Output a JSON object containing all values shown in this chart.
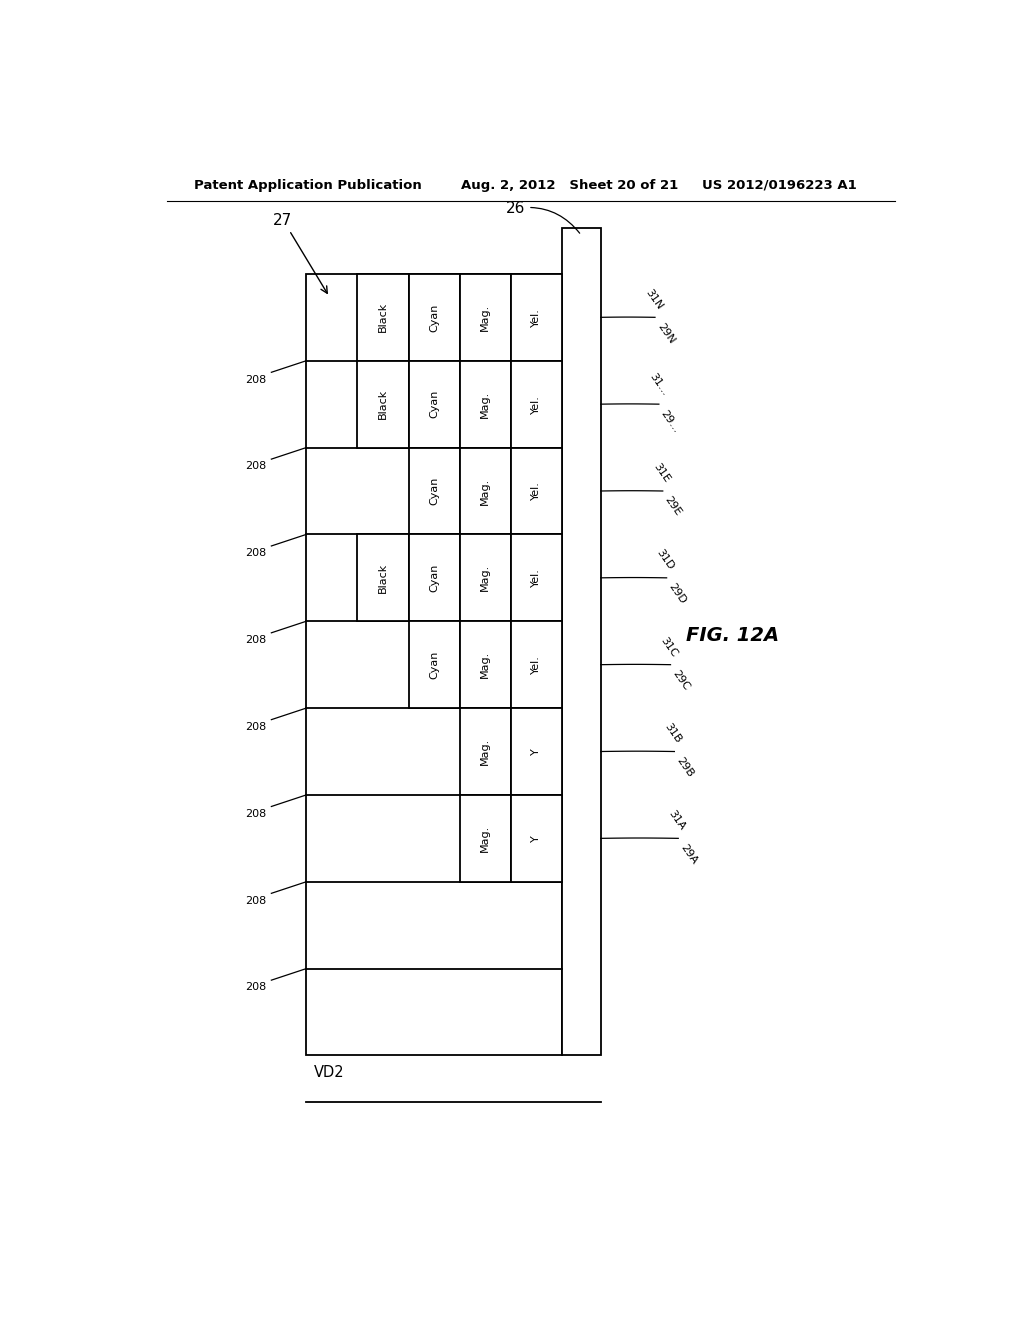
{
  "title_left": "Patent Application Publication",
  "title_center": "Aug. 2, 2012   Sheet 20 of 21",
  "title_right": "US 2012/0196223 A1",
  "fig_label": "FIG. 12A",
  "bg_color": "#ffffff",
  "rows_from_top": [
    {
      "cells": [
        {
          "label": "Black",
          "col": 1
        },
        {
          "label": "Cyan",
          "col": 2
        },
        {
          "label": "Mag.",
          "col": 3
        },
        {
          "label": "Yel.",
          "col": 4
        }
      ]
    },
    {
      "cells": [
        {
          "label": "Black",
          "col": 1
        },
        {
          "label": "Cyan",
          "col": 2
        },
        {
          "label": "Mag.",
          "col": 3
        },
        {
          "label": "Yel.",
          "col": 4
        }
      ]
    },
    {
      "cells": [
        {
          "label": "Cyan",
          "col": 2
        },
        {
          "label": "Mag.",
          "col": 3
        },
        {
          "label": "Yel.",
          "col": 4
        }
      ]
    },
    {
      "cells": [
        {
          "label": "Black",
          "col": 1
        },
        {
          "label": "Cyan",
          "col": 2
        },
        {
          "label": "Mag.",
          "col": 3
        },
        {
          "label": "Yel.",
          "col": 4
        }
      ]
    },
    {
      "cells": [
        {
          "label": "Cyan",
          "col": 2
        },
        {
          "label": "Mag.",
          "col": 3
        },
        {
          "label": "Yel.",
          "col": 4
        }
      ]
    },
    {
      "cells": [
        {
          "label": "Mag.",
          "col": 3
        },
        {
          "label": "Y",
          "col": 4
        }
      ]
    },
    {
      "cells": [
        {
          "label": "Mag.",
          "col": 3
        },
        {
          "label": "Y",
          "col": 4
        }
      ]
    },
    {
      "cells": []
    },
    {
      "cells": []
    }
  ],
  "right_labels_from_top": [
    {
      "label1": "31N",
      "label2": "29N"
    },
    {
      "label1": "31...",
      "label2": "29..."
    },
    {
      "label1": "31E",
      "label2": "29E"
    },
    {
      "label1": "31D",
      "label2": "29D"
    },
    {
      "label1": "31C",
      "label2": "29C"
    },
    {
      "label1": "31B",
      "label2": "29B"
    },
    {
      "label1": "31A",
      "label2": "29A"
    }
  ]
}
